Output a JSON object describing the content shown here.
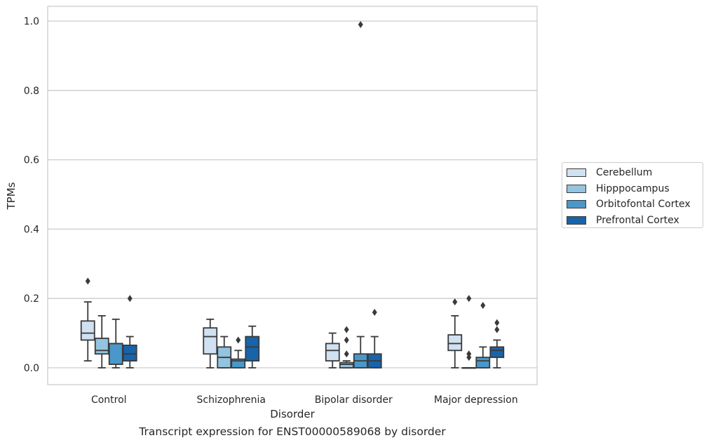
{
  "caption": "Transcript expression for ENST00000589068 by disorder",
  "chart_data": {
    "type": "box",
    "title": "",
    "xlabel": "Disorder",
    "ylabel": "TPMs",
    "ylim": [
      -0.048,
      1.04
    ],
    "yticks": [
      "0.0",
      "0.2",
      "0.4",
      "0.6",
      "0.8",
      "1.0"
    ],
    "categories": [
      "Control",
      "Schizophrenia",
      "Bipolar disorder",
      "Major depression"
    ],
    "grid": true,
    "legend_position": "right",
    "series": [
      {
        "name": "Cerebellum",
        "color": "#d0e1f2",
        "boxes": [
          {
            "min": 0.02,
            "q1": 0.08,
            "median": 0.1,
            "q3": 0.135,
            "max": 0.19,
            "outliers": [
              0.25
            ]
          },
          {
            "min": 0.0,
            "q1": 0.04,
            "median": 0.09,
            "q3": 0.115,
            "max": 0.14,
            "outliers": []
          },
          {
            "min": 0.0,
            "q1": 0.02,
            "median": 0.05,
            "q3": 0.07,
            "max": 0.1,
            "outliers": []
          },
          {
            "min": 0.0,
            "q1": 0.05,
            "median": 0.07,
            "q3": 0.095,
            "max": 0.15,
            "outliers": [
              0.19
            ]
          }
        ]
      },
      {
        "name": "Hipppocampus",
        "color": "#94c4df",
        "boxes": [
          {
            "min": 0.0,
            "q1": 0.04,
            "median": 0.05,
            "q3": 0.085,
            "max": 0.15,
            "outliers": []
          },
          {
            "min": 0.0,
            "q1": 0.0,
            "median": 0.03,
            "q3": 0.06,
            "max": 0.09,
            "outliers": []
          },
          {
            "min": 0.0,
            "q1": 0.0,
            "median": 0.01,
            "q3": 0.015,
            "max": 0.02,
            "outliers": [
              0.04,
              0.08,
              0.11
            ]
          },
          {
            "min": 0.0,
            "q1": 0.0,
            "median": 0.0,
            "q3": 0.0,
            "max": 0.0,
            "outliers": [
              0.03,
              0.04,
              0.2
            ]
          }
        ]
      },
      {
        "name": "Orbitofontal Cortex",
        "color": "#4a98c9",
        "boxes": [
          {
            "min": 0.0,
            "q1": 0.01,
            "median": 0.07,
            "q3": 0.07,
            "max": 0.14,
            "outliers": []
          },
          {
            "min": 0.0,
            "q1": 0.0,
            "median": 0.02,
            "q3": 0.025,
            "max": 0.05,
            "outliers": [
              0.08
            ]
          },
          {
            "min": 0.0,
            "q1": 0.0,
            "median": 0.02,
            "q3": 0.04,
            "max": 0.09,
            "outliers": [
              0.99
            ]
          },
          {
            "min": 0.0,
            "q1": 0.0,
            "median": 0.02,
            "q3": 0.03,
            "max": 0.06,
            "outliers": [
              0.18
            ]
          }
        ]
      },
      {
        "name": "Prefrontal Cortex",
        "color": "#1764ab",
        "boxes": [
          {
            "min": 0.0,
            "q1": 0.02,
            "median": 0.04,
            "q3": 0.065,
            "max": 0.09,
            "outliers": [
              0.2
            ]
          },
          {
            "min": 0.0,
            "q1": 0.02,
            "median": 0.06,
            "q3": 0.09,
            "max": 0.12,
            "outliers": []
          },
          {
            "min": 0.0,
            "q1": 0.0,
            "median": 0.02,
            "q3": 0.04,
            "max": 0.09,
            "outliers": [
              0.16
            ]
          },
          {
            "min": 0.0,
            "q1": 0.03,
            "median": 0.05,
            "q3": 0.06,
            "max": 0.08,
            "outliers": [
              0.11,
              0.13
            ]
          }
        ]
      }
    ]
  }
}
